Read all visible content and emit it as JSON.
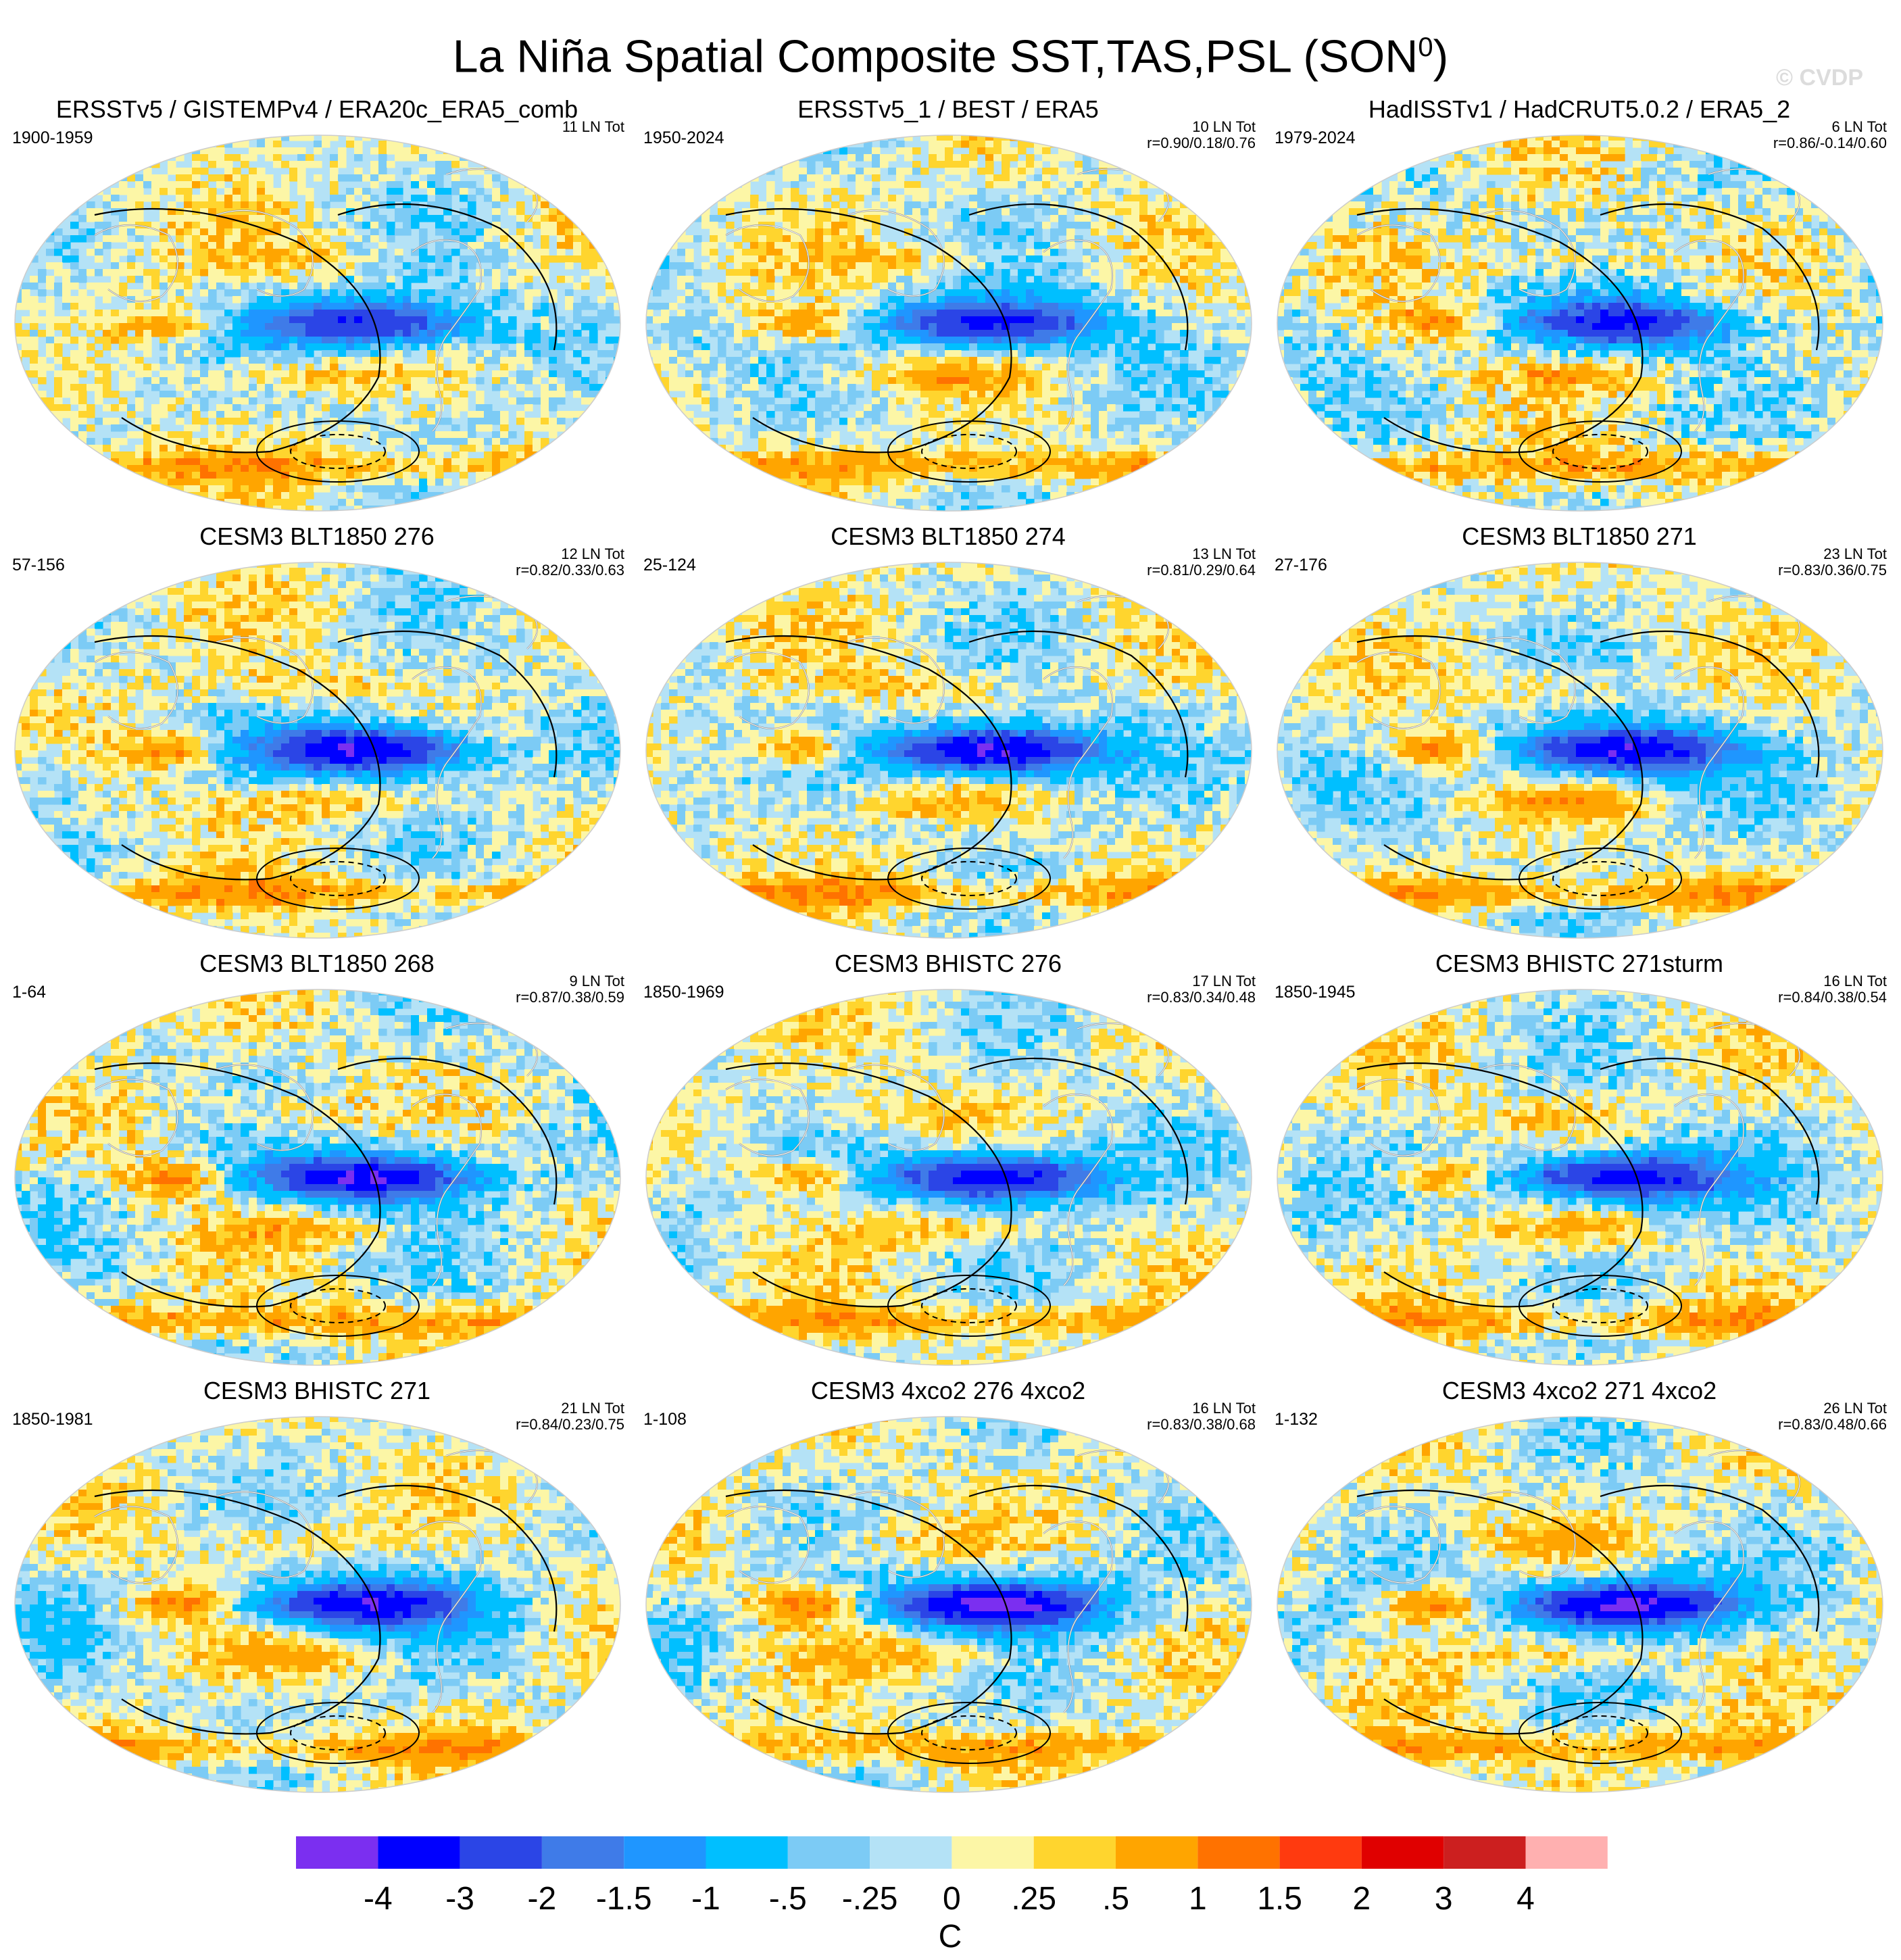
{
  "title_main": "La Niña Spatial Composite SST,TAS,PSL (SON",
  "title_sup": "0",
  "title_close": ")",
  "watermark": "© CVDP",
  "colors": {
    "levels": [
      "#7b2ff0",
      "#0000ff",
      "#2b45e6",
      "#3f7be8",
      "#1f96ff",
      "#00bfff",
      "#7ccbf5",
      "#b4e2f6",
      "#fcf6a6",
      "#ffd52e",
      "#ffa500",
      "#ff7200",
      "#ff3a0f",
      "#e00000",
      "#cc1f1f",
      "#ffb0b0"
    ],
    "land_outline": "#ffffff",
    "coast_outline": "#888888",
    "contour": "#000000"
  },
  "chart_data": [
    {
      "type": "map",
      "title": "ERSSTv5 / GISTEMPv4 / ERA20c_ERA5_comb",
      "years": "1900-1959",
      "count": "11 LN Tot",
      "corr": "",
      "strength": 0.75,
      "noise": 0.5,
      "seed": 1
    },
    {
      "type": "map",
      "title": "ERSSTv5_1 / BEST / ERA5",
      "years": "1950-2024",
      "count": "10 LN Tot",
      "corr": "r=0.90/0.18/0.76",
      "strength": 0.8,
      "noise": 0.45,
      "seed": 2
    },
    {
      "type": "map",
      "title": "HadISSTv1 / HadCRUT5.0.2 / ERA5_2",
      "years": "1979-2024",
      "count": "6 LN Tot",
      "corr": "r=0.86/-0.14/0.60",
      "strength": 0.78,
      "noise": 0.6,
      "seed": 3
    },
    {
      "type": "map",
      "title": "CESM3 BLT1850 276",
      "years": "57-156",
      "count": "12 LN Tot",
      "corr": "r=0.82/0.33/0.63",
      "strength": 1.05,
      "noise": 0.5,
      "seed": 4
    },
    {
      "type": "map",
      "title": "CESM3 BLT1850 274",
      "years": "25-124",
      "count": "13 LN Tot",
      "corr": "r=0.81/0.29/0.64",
      "strength": 1.1,
      "noise": 0.5,
      "seed": 5
    },
    {
      "type": "map",
      "title": "CESM3 BLT1850 271",
      "years": "27-176",
      "count": "23 LN Tot",
      "corr": "r=0.83/0.36/0.75",
      "strength": 1.0,
      "noise": 0.45,
      "seed": 6
    },
    {
      "type": "map",
      "title": "CESM3 BLT1850 268",
      "years": "1-64",
      "count": "9 LN Tot",
      "corr": "r=0.87/0.38/0.59",
      "strength": 1.0,
      "noise": 0.55,
      "seed": 7
    },
    {
      "type": "map",
      "title": "CESM3 BHISTC 276",
      "years": "1850-1969",
      "count": "17 LN Tot",
      "corr": "r=0.83/0.34/0.48",
      "strength": 0.95,
      "noise": 0.45,
      "seed": 8
    },
    {
      "type": "map",
      "title": "CESM3 BHISTC 271sturm",
      "years": "1850-1945",
      "count": "16 LN Tot",
      "corr": "r=0.84/0.38/0.54",
      "strength": 0.95,
      "noise": 0.5,
      "seed": 9
    },
    {
      "type": "map",
      "title": "CESM3 BHISTC 271",
      "years": "1850-1981",
      "count": "21 LN Tot",
      "corr": "r=0.84/0.23/0.75",
      "strength": 0.95,
      "noise": 0.45,
      "seed": 10
    },
    {
      "type": "map",
      "title": "CESM3 4xco2 276 4xco2",
      "years": "1-108",
      "count": "16 LN Tot",
      "corr": "r=0.83/0.38/0.68",
      "strength": 1.15,
      "noise": 0.5,
      "seed": 11
    },
    {
      "type": "map",
      "title": "CESM3 4xco2 271 4xco2",
      "years": "1-132",
      "count": "26 LN Tot",
      "corr": "r=0.83/0.48/0.66",
      "strength": 1.15,
      "noise": 0.5,
      "seed": 12
    }
  ],
  "colorbar": {
    "labels": [
      "-4",
      "-3",
      "-2",
      "-1.5",
      "-1",
      "-.5",
      "-.25",
      "0",
      ".25",
      ".5",
      "1",
      "1.5",
      "2",
      "3",
      "4"
    ],
    "units": "C"
  }
}
